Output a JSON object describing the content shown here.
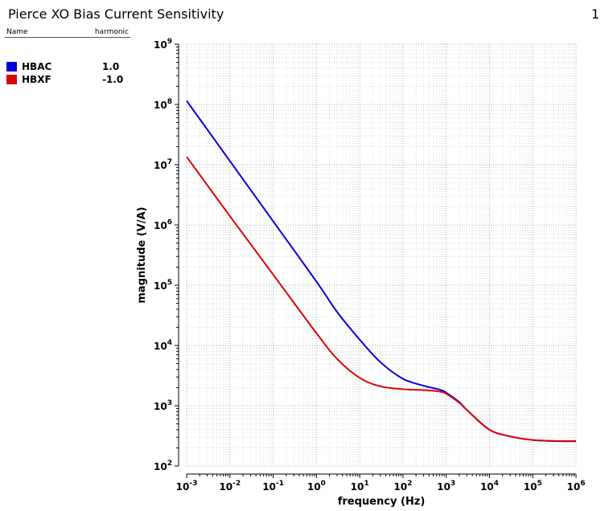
{
  "title": "Pierce XO Bias Current Sensitivity",
  "page_number": "1",
  "legend": {
    "header_name": "Name",
    "header_harmonic": "harmonic",
    "items": [
      {
        "name": "HBAC",
        "harmonic": "1.0",
        "color": "#0000dd"
      },
      {
        "name": "HBXF",
        "harmonic": "-1.0",
        "color": "#dd0000"
      }
    ]
  },
  "chart_data": {
    "type": "line",
    "title": "Pierce XO Bias Current Sensitivity",
    "xlabel": "frequency (Hz)",
    "ylabel": "magnitude (V/A)",
    "xscale": "log",
    "yscale": "log",
    "xlim": [
      0.001,
      1000000
    ],
    "ylim": [
      100,
      1000000000
    ],
    "grid": true,
    "legend_position": "left",
    "x_tick_labels": [
      {
        "base": "10",
        "exp": "-3"
      },
      {
        "base": "10",
        "exp": "-2"
      },
      {
        "base": "10",
        "exp": "-1"
      },
      {
        "base": "10",
        "exp": "0"
      },
      {
        "base": "10",
        "exp": "1"
      },
      {
        "base": "10",
        "exp": "2"
      },
      {
        "base": "10",
        "exp": "3"
      },
      {
        "base": "10",
        "exp": "4"
      },
      {
        "base": "10",
        "exp": "5"
      },
      {
        "base": "10",
        "exp": "6"
      }
    ],
    "y_tick_labels": [
      {
        "base": "10",
        "exp": "2"
      },
      {
        "base": "10",
        "exp": "3"
      },
      {
        "base": "10",
        "exp": "4"
      },
      {
        "base": "10",
        "exp": "5"
      },
      {
        "base": "10",
        "exp": "6"
      },
      {
        "base": "10",
        "exp": "7"
      },
      {
        "base": "10",
        "exp": "8"
      },
      {
        "base": "10",
        "exp": "9"
      }
    ],
    "series": [
      {
        "name": "HBAC",
        "color": "#0000dd",
        "x": [
          0.001,
          0.01,
          0.1,
          1,
          3,
          10,
          30,
          100,
          300,
          700,
          1000,
          2000,
          3000,
          10000,
          30000,
          100000,
          300000,
          1000000
        ],
        "y": [
          115000000,
          11500000,
          1150000,
          115000,
          36000,
          12500,
          5300,
          2800,
          2150,
          1850,
          1650,
          1150,
          850,
          400,
          310,
          270,
          260,
          258
        ]
      },
      {
        "name": "HBXF",
        "color": "#dd0000",
        "x": [
          0.001,
          0.01,
          0.1,
          1,
          3,
          10,
          30,
          100,
          300,
          700,
          1000,
          2000,
          3000,
          10000,
          30000,
          100000,
          300000,
          1000000
        ],
        "y": [
          13500000,
          1400000,
          150000,
          16000,
          6000,
          2900,
          2100,
          1880,
          1820,
          1720,
          1580,
          1120,
          850,
          400,
          310,
          270,
          260,
          258
        ]
      }
    ]
  }
}
